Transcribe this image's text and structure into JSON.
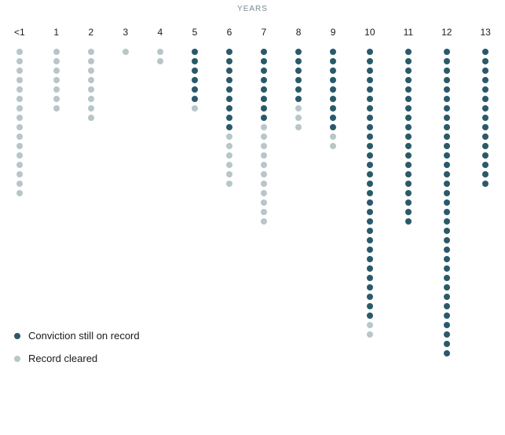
{
  "chart": {
    "type": "dot-column",
    "title": "YEARS",
    "title_fontsize": 10,
    "title_color": "#7b8a90",
    "label_fontsize": 12,
    "label_color": "#1a1a1a",
    "background_color": "#ffffff",
    "dot_diameter": 8,
    "dot_gap": 4,
    "colors": {
      "on_record": "#2a5a6a",
      "cleared": "#b8c6c8"
    },
    "columns": [
      {
        "label": "<1",
        "on_record": 0,
        "cleared": 16
      },
      {
        "label": "1",
        "on_record": 0,
        "cleared": 7
      },
      {
        "label": "2",
        "on_record": 0,
        "cleared": 8
      },
      {
        "label": "3",
        "on_record": 0,
        "cleared": 1
      },
      {
        "label": "4",
        "on_record": 0,
        "cleared": 2
      },
      {
        "label": "5",
        "on_record": 6,
        "cleared": 1
      },
      {
        "label": "6",
        "on_record": 9,
        "cleared": 6
      },
      {
        "label": "7",
        "on_record": 8,
        "cleared": 11
      },
      {
        "label": "8",
        "on_record": 6,
        "cleared": 3
      },
      {
        "label": "9",
        "on_record": 9,
        "cleared": 2
      },
      {
        "label": "10",
        "on_record": 29,
        "cleared": 2
      },
      {
        "label": "11",
        "on_record": 19,
        "cleared": 0
      },
      {
        "label": "12",
        "on_record": 33,
        "cleared": 0
      },
      {
        "label": "13",
        "on_record": 15,
        "cleared": 0
      }
    ],
    "legend": [
      {
        "label": "Conviction still on record",
        "color_key": "on_record"
      },
      {
        "label": "Record cleared",
        "color_key": "cleared"
      }
    ],
    "legend_fontsize": 13
  }
}
